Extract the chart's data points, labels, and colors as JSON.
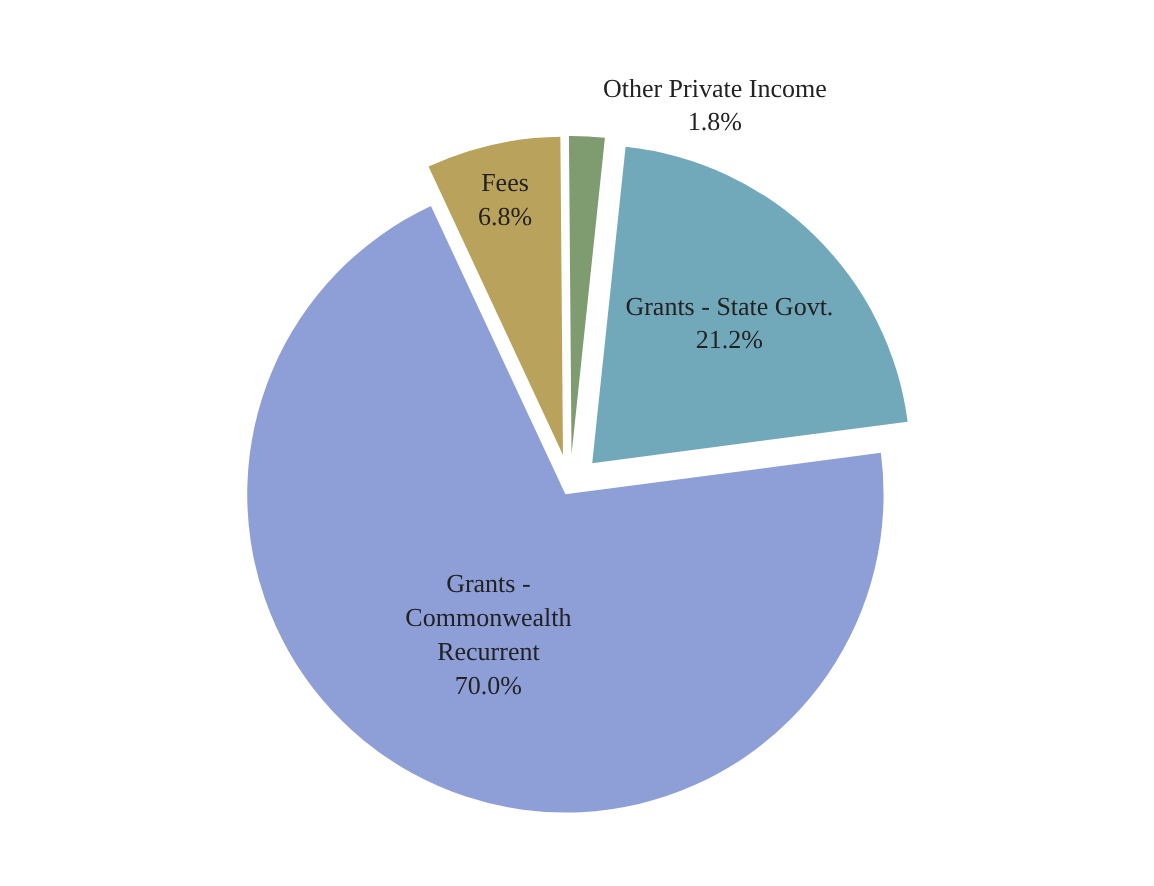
{
  "chart_data": {
    "type": "pie",
    "categories": [
      "Fees",
      "Other Private Income",
      "Grants - State Govt.",
      "Grants - Commonwealth Recurrent"
    ],
    "values": [
      6.8,
      1.8,
      21.2,
      70.0
    ],
    "value_labels": [
      "6.8%",
      "1.8%",
      "21.2%",
      "70.0%"
    ],
    "colors": [
      "#b9a35c",
      "#7f9b70",
      "#72a9ba",
      "#8e9fd8"
    ],
    "legend": false
  }
}
